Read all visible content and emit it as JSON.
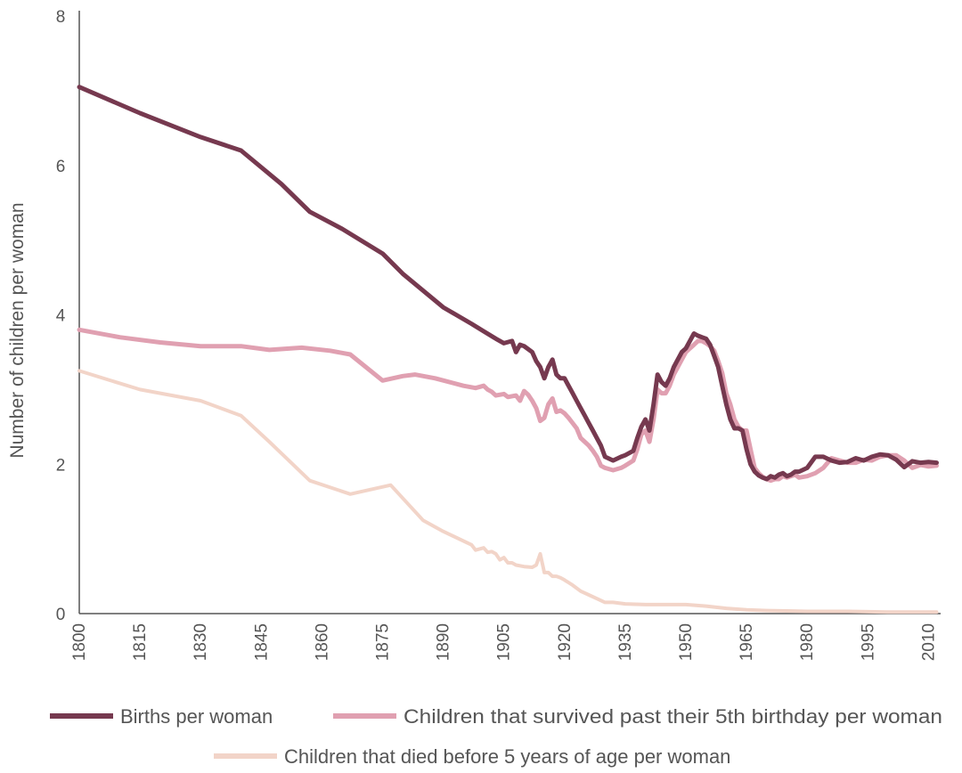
{
  "chart_data": {
    "type": "line",
    "title": "",
    "xlabel": "",
    "ylabel": "Number of children per woman",
    "xlim": [
      1800,
      2013
    ],
    "ylim": [
      0,
      8
    ],
    "yticks": [
      "0",
      "2",
      "4",
      "6",
      "8"
    ],
    "xticks": [
      "1800",
      "1815",
      "1830",
      "1845",
      "1860",
      "1875",
      "1890",
      "1905",
      "1920",
      "1935",
      "1950",
      "1965",
      "1980",
      "1995",
      "2010"
    ],
    "grid": false,
    "legend_position": "bottom",
    "series": [
      {
        "name": "Births per woman",
        "color": "#76394f",
        "x": [
          1800,
          1815,
          1830,
          1840,
          1850,
          1857,
          1865,
          1875,
          1880,
          1890,
          1897,
          1900,
          1903,
          1905,
          1907,
          1908,
          1909,
          1910,
          1912,
          1913,
          1914,
          1915,
          1916,
          1917,
          1918,
          1919,
          1920,
          1921,
          1922,
          1923,
          1924,
          1925,
          1926,
          1927,
          1928,
          1929,
          1930,
          1932,
          1934,
          1935,
          1937,
          1938,
          1939,
          1940,
          1941,
          1942,
          1943,
          1944,
          1945,
          1946,
          1947,
          1948,
          1949,
          1950,
          1951,
          1952,
          1953,
          1954,
          1955,
          1956,
          1957,
          1958,
          1959,
          1960,
          1961,
          1962,
          1963,
          1964,
          1965,
          1966,
          1967,
          1968,
          1969,
          1970,
          1971,
          1972,
          1973,
          1974,
          1975,
          1976,
          1977,
          1978,
          1980,
          1982,
          1984,
          1986,
          1988,
          1990,
          1992,
          1994,
          1996,
          1998,
          2000,
          2002,
          2004,
          2006,
          2008,
          2010,
          2012
        ],
        "values": [
          7.05,
          6.7,
          6.38,
          6.2,
          5.75,
          5.38,
          5.15,
          4.82,
          4.55,
          4.1,
          3.88,
          3.78,
          3.68,
          3.62,
          3.65,
          3.5,
          3.6,
          3.58,
          3.5,
          3.38,
          3.3,
          3.15,
          3.3,
          3.4,
          3.2,
          3.15,
          3.15,
          3.05,
          2.95,
          2.85,
          2.75,
          2.65,
          2.55,
          2.45,
          2.35,
          2.25,
          2.1,
          2.05,
          2.1,
          2.12,
          2.18,
          2.35,
          2.5,
          2.6,
          2.45,
          2.8,
          3.2,
          3.1,
          3.05,
          3.15,
          3.3,
          3.4,
          3.5,
          3.55,
          3.65,
          3.75,
          3.72,
          3.7,
          3.68,
          3.6,
          3.45,
          3.3,
          3.05,
          2.8,
          2.6,
          2.48,
          2.48,
          2.45,
          2.2,
          2.0,
          1.9,
          1.85,
          1.82,
          1.8,
          1.84,
          1.82,
          1.86,
          1.88,
          1.84,
          1.86,
          1.9,
          1.9,
          1.95,
          2.1,
          2.1,
          2.05,
          2.02,
          2.03,
          2.08,
          2.05,
          2.1,
          2.13,
          2.12,
          2.06,
          1.96,
          2.04,
          2.02,
          2.03,
          2.02
        ]
      },
      {
        "name": "Children that survived past their 5th birthday per woman",
        "color": "#e0a0b1",
        "x": [
          1800,
          1810,
          1820,
          1830,
          1840,
          1847,
          1855,
          1862,
          1867,
          1875,
          1880,
          1883,
          1888,
          1895,
          1898,
          1900,
          1901,
          1902,
          1903,
          1905,
          1906,
          1908,
          1909,
          1910,
          1911,
          1912,
          1913,
          1914,
          1915,
          1916,
          1917,
          1918,
          1919,
          1920,
          1921,
          1922,
          1923,
          1924,
          1925,
          1926,
          1927,
          1928,
          1929,
          1930,
          1932,
          1934,
          1935,
          1937,
          1938,
          1939,
          1940,
          1941,
          1942,
          1943,
          1944,
          1945,
          1946,
          1947,
          1948,
          1949,
          1950,
          1951,
          1952,
          1953,
          1954,
          1955,
          1956,
          1957,
          1958,
          1959,
          1960,
          1961,
          1962,
          1963,
          1964,
          1965,
          1966,
          1967,
          1968,
          1969,
          1970,
          1971,
          1972,
          1973,
          1974,
          1975,
          1976,
          1977,
          1978,
          1980,
          1982,
          1984,
          1986,
          1988,
          1990,
          1992,
          1994,
          1996,
          1998,
          2000,
          2002,
          2004,
          2006,
          2008,
          2010,
          2012
        ],
        "values": [
          3.8,
          3.7,
          3.63,
          3.58,
          3.58,
          3.53,
          3.56,
          3.52,
          3.47,
          3.12,
          3.18,
          3.2,
          3.15,
          3.05,
          3.02,
          3.05,
          3.0,
          2.97,
          2.92,
          2.94,
          2.9,
          2.92,
          2.85,
          2.98,
          2.93,
          2.85,
          2.75,
          2.58,
          2.62,
          2.8,
          2.88,
          2.7,
          2.72,
          2.68,
          2.62,
          2.55,
          2.48,
          2.35,
          2.3,
          2.25,
          2.18,
          2.1,
          1.98,
          1.95,
          1.92,
          1.95,
          1.98,
          2.05,
          2.2,
          2.4,
          2.45,
          2.3,
          2.6,
          3.0,
          2.95,
          2.95,
          3.05,
          3.2,
          3.3,
          3.4,
          3.5,
          3.55,
          3.6,
          3.65,
          3.65,
          3.62,
          3.58,
          3.52,
          3.38,
          3.22,
          2.95,
          2.8,
          2.6,
          2.5,
          2.45,
          2.45,
          2.2,
          1.95,
          1.88,
          1.83,
          1.8,
          1.78,
          1.8,
          1.8,
          1.84,
          1.82,
          1.84,
          1.86,
          1.82,
          1.84,
          1.88,
          1.95,
          2.08,
          2.05,
          2.02,
          2.02,
          2.06,
          2.05,
          2.1,
          2.12,
          2.12,
          2.05,
          1.95,
          1.99,
          1.97,
          1.98
        ]
      },
      {
        "name": "Children that died before 5 years of age per woman",
        "color": "#f2d4c8",
        "x": [
          1800,
          1815,
          1830,
          1840,
          1847,
          1857,
          1867,
          1877,
          1885,
          1890,
          1897,
          1898,
          1900,
          1901,
          1902,
          1903,
          1904,
          1905,
          1906,
          1907,
          1908,
          1910,
          1912,
          1913,
          1914,
          1915,
          1916,
          1917,
          1918,
          1919,
          1920,
          1922,
          1924,
          1926,
          1928,
          1930,
          1932,
          1935,
          1940,
          1945,
          1950,
          1955,
          1960,
          1965,
          1970,
          1980,
          1990,
          2000,
          2012
        ],
        "values": [
          3.25,
          3.0,
          2.85,
          2.65,
          2.3,
          1.78,
          1.6,
          1.72,
          1.25,
          1.1,
          0.92,
          0.85,
          0.88,
          0.82,
          0.83,
          0.8,
          0.72,
          0.75,
          0.68,
          0.68,
          0.65,
          0.63,
          0.62,
          0.65,
          0.8,
          0.55,
          0.55,
          0.5,
          0.5,
          0.48,
          0.45,
          0.38,
          0.3,
          0.25,
          0.2,
          0.15,
          0.15,
          0.13,
          0.12,
          0.12,
          0.12,
          0.1,
          0.07,
          0.05,
          0.04,
          0.03,
          0.03,
          0.02,
          0.02
        ]
      }
    ]
  }
}
